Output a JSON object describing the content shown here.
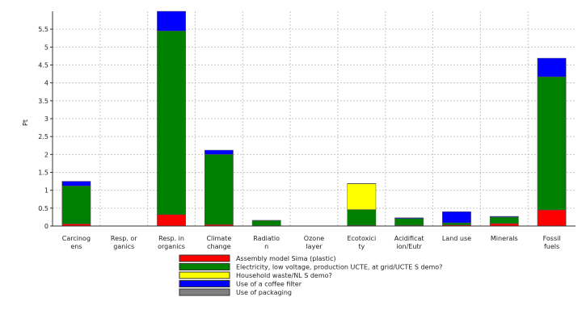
{
  "chart_data": {
    "type": "bar",
    "stacked": true,
    "ylabel": "Pt",
    "ylim": [
      0,
      6.0
    ],
    "ytick_values": [
      0,
      0.5,
      1,
      1.5,
      2,
      2.5,
      3,
      3.5,
      4,
      4.5,
      5,
      5.5
    ],
    "ytick_labels": [
      "0",
      "0.5",
      "1",
      "1.5",
      "2",
      "2.5",
      "3",
      "3.5",
      "4",
      "4.5",
      "5",
      "5.5"
    ],
    "grid": true,
    "legend_position": "bottom",
    "categories": [
      [
        "Carcinog",
        "ens"
      ],
      [
        "Resp. or",
        "ganics"
      ],
      [
        "Resp. in",
        "organics"
      ],
      [
        "Climate",
        "change"
      ],
      [
        "Radiatio",
        "n"
      ],
      [
        "Ozone",
        "layer"
      ],
      [
        "Ecotoxici",
        "ty"
      ],
      [
        "Acidificat",
        "ion/Eutr"
      ],
      [
        "Land use"
      ],
      [
        "Minerals"
      ],
      [
        "Fossil",
        "fuels"
      ]
    ],
    "series": [
      {
        "name": "Assembly model Sima (plastic)",
        "color": "#ff0000",
        "values": [
          0.06,
          0,
          0.32,
          0.04,
          0.01,
          0,
          0.02,
          0.02,
          0.03,
          0.07,
          0.45
        ]
      },
      {
        "name": "Electricity, low voltage, production UCTE, at grid/UCTE S demo?",
        "color": "#008000",
        "values": [
          1.06,
          0,
          5.13,
          1.96,
          0.14,
          0,
          0.44,
          0.19,
          0.06,
          0.18,
          3.72
        ]
      },
      {
        "name": "Household waste/NL S demo?",
        "color": "#ffff00",
        "values": [
          0,
          0,
          0,
          0,
          0,
          0,
          0.72,
          0,
          0,
          0,
          0
        ]
      },
      {
        "name": "Use of a coffee filter",
        "color": "#0000ff",
        "values": [
          0.13,
          0,
          0.55,
          0.12,
          0.01,
          0,
          0.01,
          0.02,
          0.31,
          0.02,
          0.52
        ]
      },
      {
        "name": "Use of packaging",
        "color": "#808080",
        "values": [
          0,
          0,
          0,
          0,
          0,
          0,
          0,
          0,
          0,
          0,
          0
        ]
      }
    ]
  }
}
